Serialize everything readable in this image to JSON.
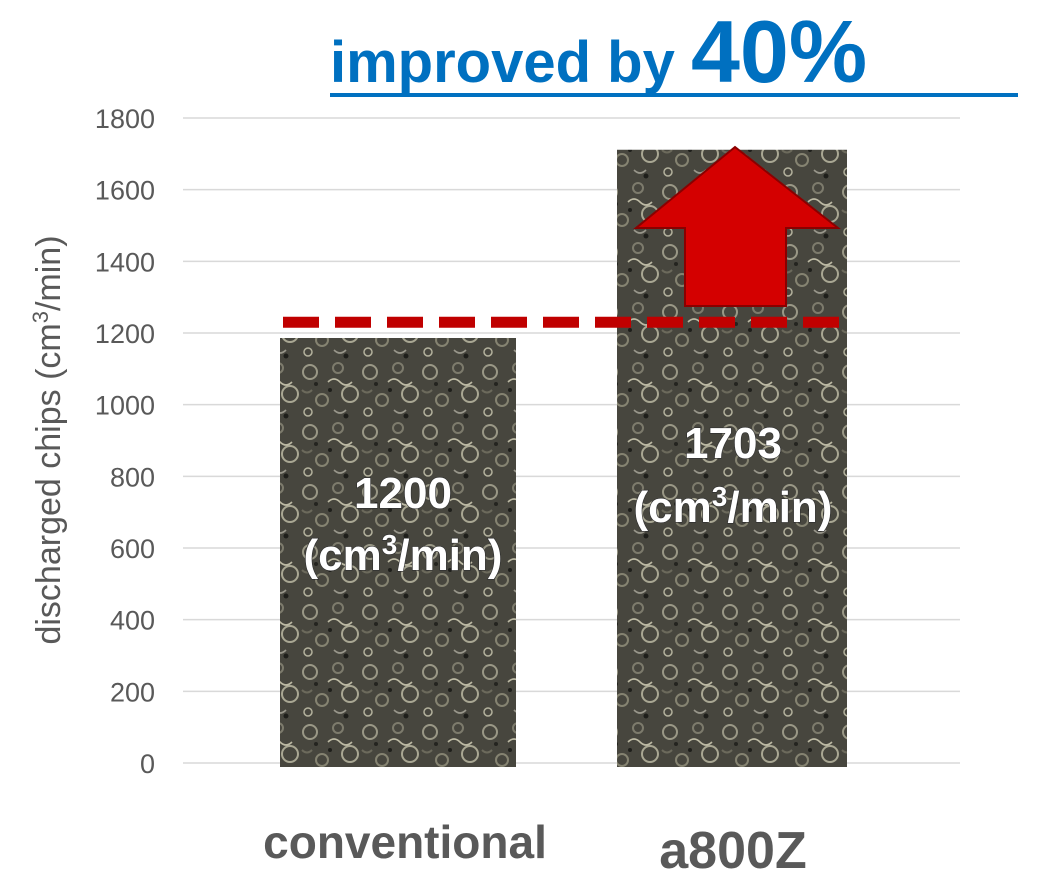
{
  "chart_data": {
    "type": "bar",
    "title": "improved by 40%",
    "title_parts": {
      "prefix": "improved by",
      "percent": "40%"
    },
    "ylabel_main": "discharged chips (cm",
    "ylabel_sup": "3",
    "ylabel_tail": "/min)",
    "categories": [
      "conventional",
      "a800Z"
    ],
    "values": [
      1200,
      1703
    ],
    "data_labels": [
      {
        "number": "1200",
        "unit_pre": "(cm",
        "unit_sup": "3",
        "unit_post": "/min)"
      },
      {
        "number": "1703",
        "unit_pre": "(cm",
        "unit_sup": "3",
        "unit_post": "/min)"
      }
    ],
    "ylim": [
      0,
      1800
    ],
    "yticks": [
      0,
      200,
      400,
      600,
      800,
      1000,
      1200,
      1400,
      1600,
      1800
    ],
    "grid": true,
    "reference_line_value": 1230,
    "colors": {
      "bar_base": "#4a4a42",
      "reference_line": "#c00000",
      "arrow": "#d40000",
      "title": "#0070c0",
      "text": "#595959",
      "grid": "#d9d9d9"
    }
  }
}
